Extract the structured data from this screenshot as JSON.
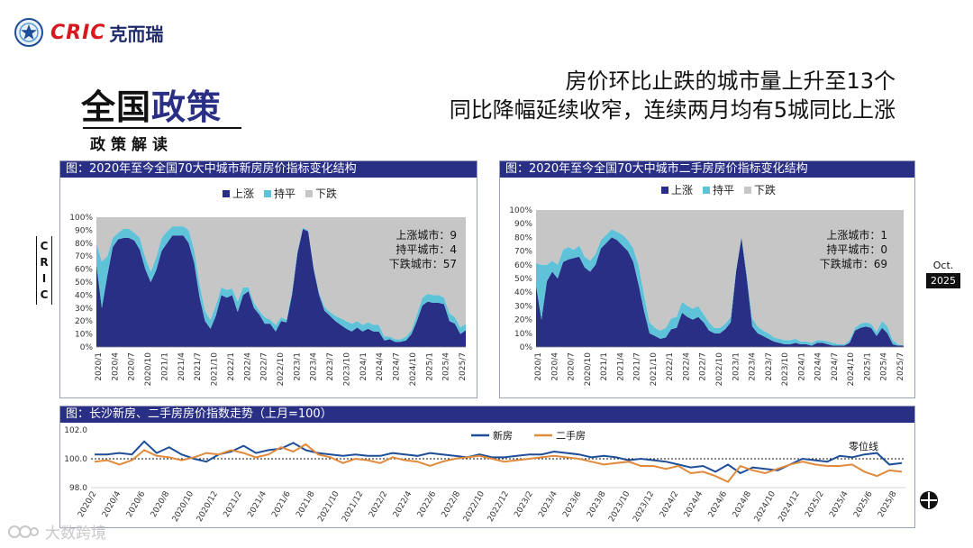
{
  "header": {
    "brand": "CRIC",
    "brand_cn": "克而瑞",
    "headline_line1": "房价环比止跌的城市量上升至13个",
    "headline_line2": "同比降幅延续收窄，连续两月均有5城同比上涨",
    "section_title_a": "全国",
    "section_title_b": "政策",
    "section_sub": "政策解读",
    "side_label": [
      "C",
      "R",
      "I",
      "C"
    ],
    "date_month": "Oct.",
    "date_year": "2025"
  },
  "watermark": "大数跨境",
  "colors": {
    "up": "#2a2f86",
    "flat": "#5ec3d9",
    "down": "#c6c6c6",
    "new": "#1f4e99",
    "second": "#e08a3c",
    "header": "#2a2f86"
  },
  "chart_data": [
    {
      "type": "area",
      "title": "图：2020年至今全国70大中城市新房房价指标变化结构",
      "legend": [
        "上涨",
        "持平",
        "下跌"
      ],
      "legend_position": "top-center",
      "ylim": [
        0,
        100
      ],
      "yticks": [
        "0%",
        "10%",
        "20%",
        "30%",
        "40%",
        "50%",
        "60%",
        "70%",
        "80%",
        "90%",
        "100%"
      ],
      "xticks": [
        "2020/1",
        "2020/4",
        "2020/7",
        "2020/10",
        "2021/1",
        "2021/4",
        "2021/7",
        "2021/10",
        "2022/1",
        "2022/4",
        "2022/7",
        "2022/10",
        "2023/1",
        "2023/4",
        "2023/7",
        "2023/10",
        "2024/1",
        "2024/4",
        "2024/7",
        "2024/10",
        "2025/1",
        "2025/4",
        "2025/7"
      ],
      "annotation": [
        "上涨城市：9",
        "持平城市：4",
        "下跌城市：57"
      ],
      "series": [
        {
          "name": "上涨",
          "values": [
            64,
            30,
            55,
            77,
            83,
            84,
            84,
            82,
            75,
            60,
            50,
            59,
            74,
            80,
            86,
            86,
            86,
            80,
            65,
            38,
            20,
            14,
            24,
            40,
            38,
            40,
            27,
            40,
            43,
            30,
            25,
            18,
            18,
            12,
            20,
            19,
            40,
            72,
            91,
            89,
            60,
            40,
            28,
            24,
            20,
            17,
            14,
            12,
            15,
            12,
            14,
            12,
            12,
            5,
            6,
            4,
            4,
            5,
            10,
            20,
            32,
            35,
            34,
            34,
            33,
            20,
            18,
            10,
            13
          ]
        },
        {
          "name": "持平",
          "values": [
            16,
            36,
            15,
            7,
            5,
            7,
            7,
            6,
            9,
            9,
            8,
            10,
            10,
            9,
            7,
            7,
            7,
            10,
            10,
            10,
            8,
            7,
            8,
            6,
            6,
            5,
            8,
            6,
            3,
            4,
            3,
            5,
            3,
            5,
            3,
            2,
            3,
            2,
            1,
            1,
            1,
            2,
            3,
            3,
            4,
            5,
            6,
            6,
            5,
            5,
            5,
            5,
            5,
            3,
            2,
            2,
            2,
            3,
            3,
            5,
            6,
            6,
            6,
            6,
            5,
            6,
            5,
            5,
            5
          ]
        },
        {
          "name": "下跌",
          "values": [
            20,
            34,
            30,
            16,
            12,
            9,
            9,
            12,
            16,
            31,
            42,
            31,
            16,
            11,
            7,
            7,
            7,
            10,
            25,
            52,
            72,
            79,
            68,
            54,
            56,
            55,
            65,
            54,
            54,
            66,
            72,
            77,
            79,
            83,
            77,
            79,
            57,
            26,
            8,
            10,
            39,
            58,
            69,
            73,
            76,
            78,
            80,
            82,
            80,
            83,
            81,
            83,
            83,
            92,
            92,
            94,
            94,
            92,
            87,
            75,
            62,
            59,
            60,
            60,
            62,
            74,
            77,
            85,
            82
          ]
        }
      ]
    },
    {
      "type": "area",
      "title": "图：2020年至今全国70大中城市二手房房价指标变化结构",
      "legend": [
        "上涨",
        "持平",
        "下跌"
      ],
      "legend_position": "top-center",
      "ylim": [
        0,
        100
      ],
      "yticks": [
        "0%",
        "10%",
        "20%",
        "30%",
        "40%",
        "50%",
        "60%",
        "70%",
        "80%",
        "90%",
        "100%"
      ],
      "xticks": [
        "2020/1",
        "2020/4",
        "2020/7",
        "2020/10",
        "2021/1",
        "2021/4",
        "2021/7",
        "2021/10",
        "2022/1",
        "2022/4",
        "2022/7",
        "2022/10",
        "2023/1",
        "2023/4",
        "2023/7",
        "2023/10",
        "2024/1",
        "2024/4",
        "2024/7",
        "2024/10",
        "2025/1",
        "2025/4",
        "2025/7"
      ],
      "annotation": [
        "上涨城市：1",
        "持平城市：0",
        "下跌城市：69"
      ],
      "series": [
        {
          "name": "上涨",
          "values": [
            45,
            20,
            48,
            55,
            50,
            62,
            64,
            65,
            66,
            58,
            55,
            60,
            72,
            76,
            80,
            78,
            74,
            70,
            62,
            45,
            26,
            10,
            8,
            6,
            7,
            13,
            14,
            25,
            22,
            20,
            22,
            18,
            12,
            10,
            10,
            13,
            18,
            55,
            80,
            50,
            15,
            10,
            8,
            6,
            4,
            3,
            2,
            2,
            3,
            2,
            2,
            1,
            3,
            3,
            2,
            1,
            1,
            1,
            3,
            12,
            14,
            15,
            14,
            8,
            14,
            10,
            2,
            1,
            1
          ]
        },
        {
          "name": "持平",
          "values": [
            16,
            40,
            12,
            8,
            10,
            9,
            9,
            6,
            8,
            8,
            8,
            8,
            6,
            6,
            6,
            6,
            8,
            8,
            10,
            14,
            12,
            8,
            6,
            6,
            7,
            8,
            8,
            8,
            8,
            8,
            8,
            6,
            6,
            4,
            4,
            4,
            4,
            2,
            1,
            3,
            6,
            5,
            4,
            4,
            3,
            3,
            3,
            3,
            3,
            2,
            2,
            2,
            2,
            2,
            2,
            2,
            1,
            1,
            2,
            2,
            3,
            3,
            3,
            3,
            5,
            5,
            3,
            1,
            0
          ]
        },
        {
          "name": "下跌",
          "values": [
            39,
            40,
            40,
            37,
            40,
            29,
            27,
            29,
            26,
            34,
            37,
            32,
            22,
            18,
            14,
            16,
            18,
            22,
            28,
            41,
            62,
            82,
            86,
            88,
            86,
            79,
            78,
            67,
            70,
            72,
            70,
            76,
            82,
            86,
            86,
            83,
            78,
            43,
            19,
            47,
            79,
            85,
            88,
            90,
            93,
            94,
            95,
            95,
            94,
            96,
            96,
            97,
            95,
            95,
            96,
            97,
            98,
            98,
            95,
            86,
            83,
            82,
            83,
            89,
            81,
            85,
            95,
            98,
            99
          ]
        }
      ]
    },
    {
      "type": "line",
      "title": "图：长沙新房、二手房房价指数走势（上月=100）",
      "legend": [
        "新房",
        "二手房"
      ],
      "legend_position": "top-center",
      "ylim": [
        98.0,
        102.0
      ],
      "yticks": [
        "98.0",
        "100.0",
        "102.0"
      ],
      "reference_label": "零位线",
      "xticks": [
        "2020/2",
        "2020/4",
        "2020/6",
        "2020/8",
        "2020/10",
        "2020/12",
        "2021/2",
        "2021/4",
        "2021/6",
        "2021/8",
        "2021/10",
        "2021/12",
        "2022/2",
        "2022/4",
        "2022/6",
        "2022/8",
        "2022/10",
        "2022/12",
        "2023/2",
        "2023/4",
        "2023/6",
        "2023/8",
        "2023/10",
        "2023/12",
        "2024/2",
        "2024/4",
        "2024/6",
        "2024/8",
        "2024/10",
        "2024/12",
        "2025/2",
        "2025/4",
        "2025/6",
        "2025/8"
      ],
      "series": [
        {
          "name": "新房",
          "values": [
            100.3,
            100.3,
            100.4,
            100.3,
            101.2,
            100.4,
            100.8,
            100.3,
            100.0,
            99.8,
            100.3,
            100.5,
            100.9,
            100.4,
            100.6,
            100.7,
            101.1,
            100.6,
            100.4,
            100.3,
            100.2,
            100.3,
            100.2,
            100.2,
            100.4,
            100.3,
            100.2,
            100.4,
            100.3,
            100.2,
            100.1,
            100.3,
            100.1,
            100.1,
            100.2,
            100.3,
            100.3,
            100.5,
            100.4,
            100.3,
            100.1,
            100.2,
            100.1,
            99.9,
            100.0,
            99.9,
            99.8,
            99.6,
            99.4,
            99.5,
            99.1,
            99.6,
            99.0,
            99.4,
            99.3,
            99.2,
            99.6,
            100.0,
            99.9,
            99.8,
            100.2,
            100.1,
            100.3,
            100.4,
            99.6,
            99.7
          ]
        },
        {
          "name": "二手房",
          "values": [
            99.8,
            99.9,
            99.6,
            99.9,
            100.6,
            100.2,
            100.1,
            99.9,
            100.1,
            100.4,
            100.3,
            100.6,
            100.4,
            100.1,
            100.3,
            100.8,
            100.5,
            101.0,
            100.3,
            100.1,
            99.7,
            100.0,
            99.9,
            99.7,
            100.1,
            99.9,
            99.8,
            99.5,
            99.8,
            100.0,
            100.1,
            100.2,
            100.0,
            99.8,
            99.9,
            100.0,
            100.1,
            100.2,
            100.1,
            100.0,
            99.8,
            99.6,
            99.7,
            99.8,
            99.5,
            99.5,
            99.3,
            99.5,
            99.0,
            99.1,
            98.8,
            98.4,
            99.5,
            99.2,
            99.0,
            99.3,
            99.6,
            99.8,
            99.6,
            99.5,
            99.5,
            99.6,
            99.1,
            98.8,
            99.2,
            99.1
          ]
        }
      ]
    }
  ]
}
